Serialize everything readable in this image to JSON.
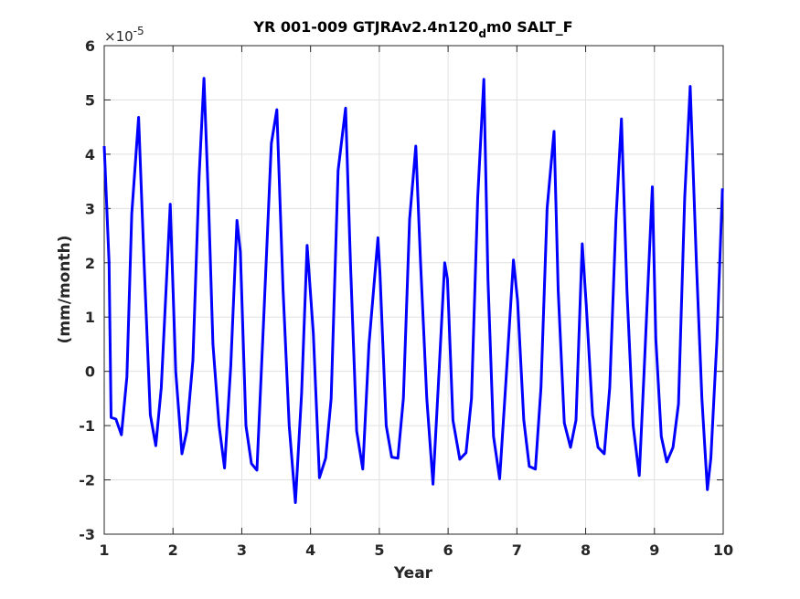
{
  "chart_data": {
    "type": "line",
    "title_main": "YR 001-009 GTJRAv2.4n120",
    "title_sub": "d",
    "title_tail": "m0 SALT_F",
    "xlabel": "Year",
    "ylabel": "(mm/month)",
    "y_exponent_base": "×10",
    "y_exponent_power": "-5",
    "xlim": [
      1,
      10
    ],
    "ylim": [
      -3,
      6
    ],
    "xticks": [
      "1",
      "2",
      "3",
      "4",
      "5",
      "6",
      "7",
      "8",
      "9",
      "10"
    ],
    "yticks": [
      "-3",
      "-2",
      "-1",
      "0",
      "1",
      "2",
      "3",
      "4",
      "5",
      "6"
    ],
    "grid": true,
    "line_color": "#0000ff",
    "series": [
      {
        "x": [
          1.0,
          1.07,
          1.1,
          1.17,
          1.25,
          1.33,
          1.4,
          1.5,
          1.58,
          1.67,
          1.75,
          1.83,
          1.96,
          2.04,
          2.13,
          2.2,
          2.29,
          2.38,
          2.45,
          2.52,
          2.58,
          2.67,
          2.75,
          2.84,
          2.93,
          2.98,
          3.06,
          3.14,
          3.22,
          3.32,
          3.43,
          3.51,
          3.6,
          3.69,
          3.78,
          3.87,
          3.95,
          4.04,
          4.13,
          4.22,
          4.3,
          4.4,
          4.51,
          4.58,
          4.67,
          4.76,
          4.85,
          4.98,
          5.01,
          5.1,
          5.18,
          5.27,
          5.35,
          5.44,
          5.53,
          5.6,
          5.69,
          5.78,
          5.86,
          5.95,
          5.99,
          6.07,
          6.17,
          6.26,
          6.34,
          6.43,
          6.52,
          6.58,
          6.66,
          6.75,
          6.84,
          6.95,
          7.01,
          7.1,
          7.18,
          7.27,
          7.35,
          7.44,
          7.54,
          7.6,
          7.69,
          7.78,
          7.86,
          7.95,
          8.01,
          8.1,
          8.18,
          8.27,
          8.35,
          8.44,
          8.52,
          8.6,
          8.69,
          8.78,
          8.85,
          8.97,
          9.02,
          9.1,
          9.18,
          9.27,
          9.35,
          9.44,
          9.52,
          9.61,
          9.69,
          9.77,
          9.82,
          9.91,
          9.99
        ],
        "y": [
          4.15,
          2.0,
          -0.85,
          -0.88,
          -1.17,
          -0.1,
          2.9,
          4.68,
          2.0,
          -0.8,
          -1.37,
          -0.3,
          3.08,
          0.0,
          -1.52,
          -1.1,
          0.2,
          3.6,
          5.4,
          3.0,
          0.5,
          -1.0,
          -1.78,
          0.1,
          2.78,
          2.2,
          -1.0,
          -1.7,
          -1.82,
          1.0,
          4.2,
          4.82,
          1.5,
          -1.0,
          -2.42,
          -0.4,
          2.32,
          0.7,
          -1.96,
          -1.6,
          -0.5,
          3.7,
          4.85,
          2.0,
          -1.1,
          -1.8,
          0.5,
          2.46,
          1.8,
          -1.0,
          -1.58,
          -1.6,
          -0.5,
          2.8,
          4.15,
          2.0,
          -0.5,
          -2.08,
          -0.2,
          2.0,
          1.7,
          -0.9,
          -1.62,
          -1.5,
          -0.5,
          3.2,
          5.38,
          1.7,
          -1.2,
          -1.98,
          -0.2,
          2.05,
          1.3,
          -0.9,
          -1.75,
          -1.8,
          -0.3,
          3.0,
          4.42,
          1.5,
          -0.95,
          -1.4,
          -0.9,
          2.35,
          1.2,
          -0.8,
          -1.4,
          -1.52,
          -0.3,
          2.8,
          4.65,
          1.5,
          -1.0,
          -1.92,
          0.0,
          3.4,
          0.6,
          -1.2,
          -1.67,
          -1.4,
          -0.6,
          3.2,
          5.25,
          2.0,
          -0.5,
          -2.18,
          -1.6,
          0.6,
          3.37
        ]
      }
    ]
  }
}
